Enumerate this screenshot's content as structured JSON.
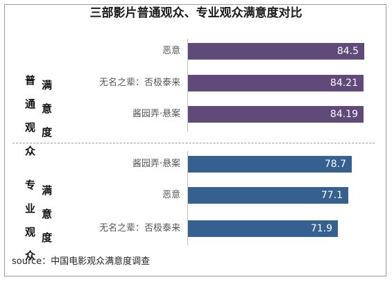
{
  "title": "三部影片普通观众、专业观众满意度对比",
  "source": "source：中国电影观众满意度调查",
  "colors": {
    "general": "#5f4a7a",
    "professional": "#356090"
  },
  "chart_data": [
    {
      "type": "bar",
      "orientation": "horizontal",
      "group_label": "普通观众满意度",
      "group_label_display": "普通 满\n观众 意\n 度",
      "categories": [
        "恶意",
        "无名之辈：否极泰来",
        "酱园弄·悬案"
      ],
      "values": [
        84.5,
        84.21,
        84.19
      ],
      "xlim": [
        0,
        100
      ],
      "grid": false
    },
    {
      "type": "bar",
      "orientation": "horizontal",
      "group_label": "专业观众满意度",
      "group_label_display": "专业 满\n观众 意\n 度",
      "categories": [
        "酱园弄·悬案",
        "恶意",
        "无名之辈：否极泰来"
      ],
      "values": [
        78.7,
        77.1,
        71.9
      ],
      "xlim": [
        0,
        100
      ],
      "grid": false
    }
  ]
}
